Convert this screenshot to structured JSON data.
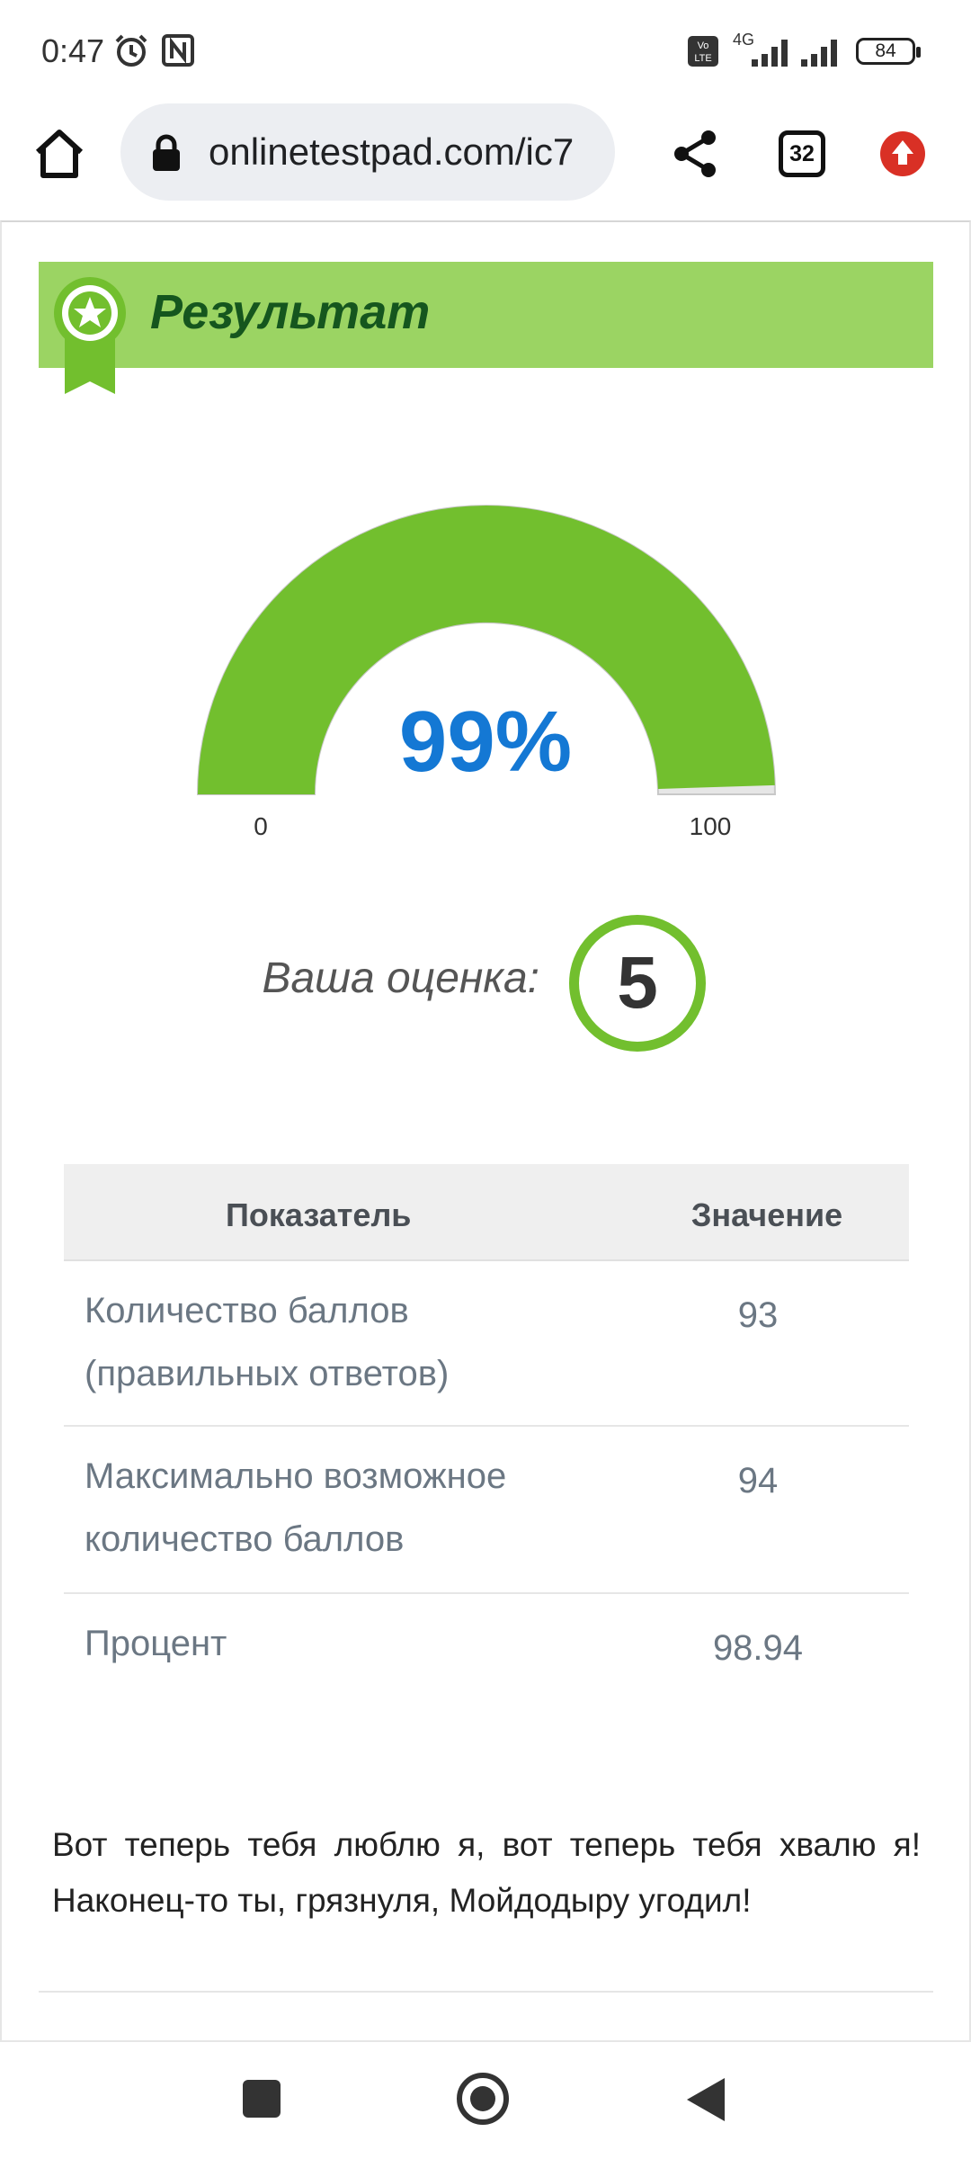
{
  "status_bar": {
    "time": "0:47",
    "network": "4G",
    "volte": "Vo LTE",
    "battery": "84"
  },
  "browser": {
    "url": "onlinetestpad.com/ic7",
    "tab_count": "32",
    "icons": [
      "home-icon",
      "lock-icon",
      "share-icon",
      "tabs-icon",
      "update-icon"
    ]
  },
  "result": {
    "title": "Результат",
    "gauge": {
      "value_label": "99%",
      "value": 99,
      "min": "0",
      "max": "100",
      "fill_color": "#72bf2e",
      "value_color": "#1478d4"
    },
    "grade_label": "Ваша оценка:",
    "grade": "5"
  },
  "table": {
    "headers": [
      "Показатель",
      "Значение"
    ],
    "rows": [
      {
        "name_line1": "Количество баллов",
        "name_line2": "(правильных ответов)",
        "value": "93"
      },
      {
        "name_line1": "Максимально возможное",
        "name_line2": "количество баллов",
        "value": "94"
      },
      {
        "name_line1": "Процент",
        "name_line2": "",
        "value": "98.94"
      }
    ]
  },
  "message": "Вот теперь тебя люблю я, вот теперь тебя хвалю я! Наконец-то ты, грязнуля, Мойдодыру угодил!",
  "colors": {
    "banner": "#9bd463",
    "title": "#15561e",
    "accent_green": "#72bf2e"
  }
}
